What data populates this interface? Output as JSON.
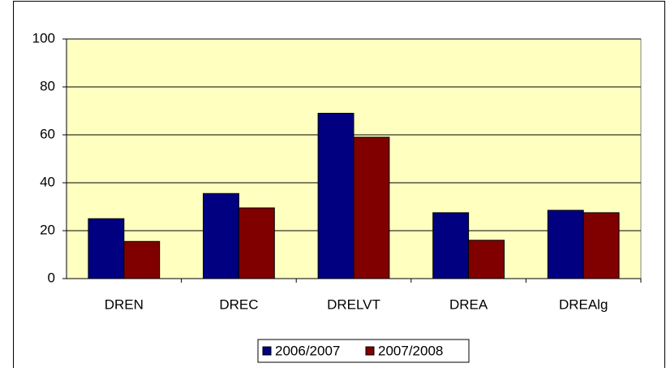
{
  "chart_data": {
    "type": "bar",
    "categories": [
      "DREN",
      "DREC",
      "DRELVT",
      "DREA",
      "DREAlg"
    ],
    "series": [
      {
        "name": "2006/2007",
        "color": "#000080",
        "values": [
          25,
          35.5,
          69,
          27.5,
          28.5
        ]
      },
      {
        "name": "2007/2008",
        "color": "#800000",
        "values": [
          15.5,
          29.5,
          59,
          16,
          27.5
        ]
      }
    ],
    "ylim": [
      0,
      100
    ],
    "yticks": [
      0,
      20,
      40,
      60,
      80,
      100
    ],
    "grid": true,
    "plot_background": "#ffffc0",
    "legend": "bottom"
  }
}
